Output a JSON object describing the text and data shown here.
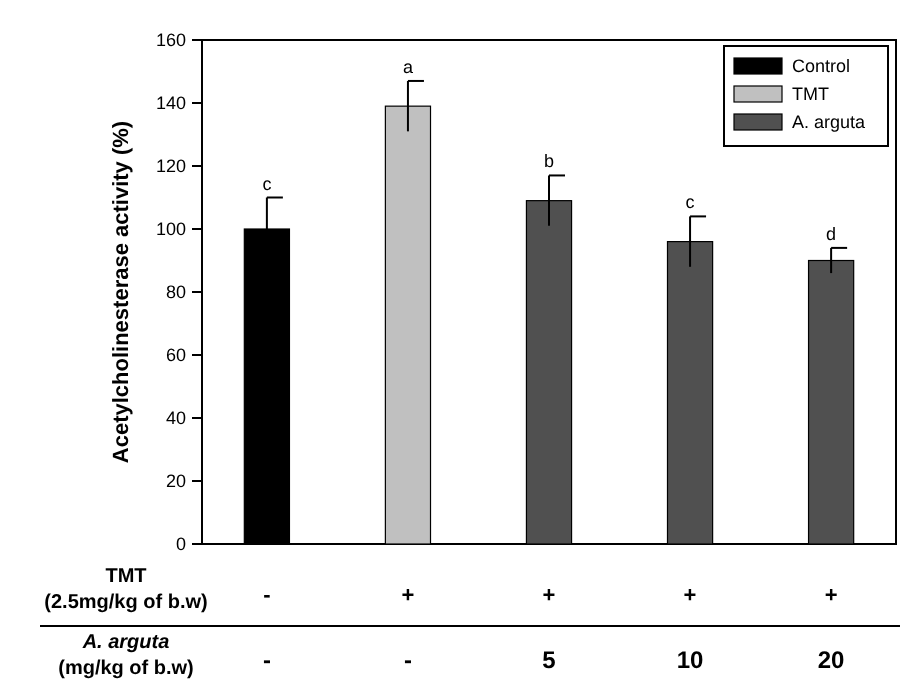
{
  "chart_data": {
    "type": "bar",
    "ylabel": "Acetylcholinesterase activity (%)",
    "xlabel": "A. arguta\n(mg/kg of b.w)",
    "categories": [
      "-",
      "-",
      "5",
      "10",
      "20"
    ],
    "series": [
      {
        "name": "Control",
        "color": "#000000",
        "values": [
          100,
          null,
          null,
          null,
          null
        ],
        "errors": [
          10,
          null,
          null,
          null,
          null
        ]
      },
      {
        "name": "TMT",
        "color": "#c0c0c0",
        "values": [
          null,
          139,
          null,
          null,
          null
        ],
        "errors": [
          null,
          8,
          null,
          null,
          null
        ]
      },
      {
        "name": "A. arguta",
        "color": "#505050",
        "values": [
          null,
          null,
          109,
          96,
          90
        ],
        "errors": [
          null,
          null,
          8,
          8,
          4
        ]
      }
    ],
    "ylim": [
      0,
      160
    ],
    "yticks": [
      0,
      20,
      40,
      60,
      80,
      100,
      120,
      140,
      160
    ],
    "grid": false,
    "legend": "top right",
    "annotations": [
      "TMT\n(2.5mg/kg of b.w)",
      "-",
      "+",
      "+",
      "+",
      "+",
      "c",
      "a",
      "b",
      "c",
      "d"
    ]
  }
}
